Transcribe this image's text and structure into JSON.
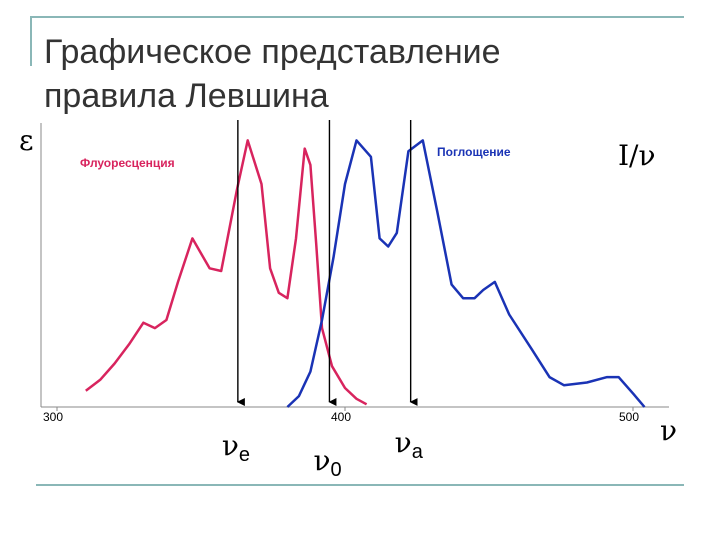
{
  "title_lines": [
    "Графическое представление",
    "правила Левшина"
  ],
  "colors": {
    "fluorescence": "#d8245e",
    "absorption": "#1a33b5",
    "decor": "#8ab7b7"
  },
  "chart_data": {
    "type": "line",
    "title": "Графическое представление правила Левшина",
    "ylabel_left": "ε",
    "ylabel_right": "I/ν",
    "xlabel": "ν",
    "xlim": [
      300,
      500
    ],
    "ylim": [
      0,
      1
    ],
    "x_ticks": [
      {
        "value": 300,
        "label": "300"
      },
      {
        "value": 400,
        "label": "400"
      },
      {
        "value": 500,
        "label": "500"
      }
    ],
    "grid": false,
    "series": [
      {
        "name": "Флуоресценция",
        "color": "#d8245e",
        "points": [
          [
            310.0,
            0.06
          ],
          [
            315.0,
            0.1
          ],
          [
            320.0,
            0.16
          ],
          [
            325.0,
            0.23
          ],
          [
            330.0,
            0.31
          ],
          [
            334.0,
            0.29
          ],
          [
            338.0,
            0.32
          ],
          [
            342.0,
            0.46
          ],
          [
            347.0,
            0.62
          ],
          [
            353.0,
            0.51
          ],
          [
            357.0,
            0.5
          ],
          [
            362.5,
            0.8
          ],
          [
            366.2,
            0.98
          ],
          [
            371.0,
            0.82
          ],
          [
            374.0,
            0.51
          ],
          [
            377.0,
            0.42
          ],
          [
            380.0,
            0.4
          ],
          [
            383.0,
            0.62
          ],
          [
            386.0,
            0.95
          ],
          [
            388.0,
            0.89
          ],
          [
            390.0,
            0.6
          ],
          [
            392.0,
            0.29
          ],
          [
            395.5,
            0.15
          ],
          [
            400.0,
            0.07
          ],
          [
            404.0,
            0.03
          ],
          [
            407.5,
            0.01
          ]
        ]
      },
      {
        "name": "Поглощение",
        "color": "#1a33b5",
        "points": [
          [
            380.0,
            0.0
          ],
          [
            384.0,
            0.04
          ],
          [
            388.0,
            0.13
          ],
          [
            392.0,
            0.32
          ],
          [
            396.0,
            0.55
          ],
          [
            400.0,
            0.82
          ],
          [
            404.0,
            0.98
          ],
          [
            409.0,
            0.92
          ],
          [
            412.0,
            0.62
          ],
          [
            415.0,
            0.59
          ],
          [
            418.0,
            0.64
          ],
          [
            422.0,
            0.94
          ],
          [
            427.0,
            0.98
          ],
          [
            432.0,
            0.72
          ],
          [
            437.0,
            0.45
          ],
          [
            441.0,
            0.4
          ],
          [
            445.0,
            0.4
          ],
          [
            448.0,
            0.43
          ],
          [
            452.0,
            0.46
          ],
          [
            457.0,
            0.34
          ],
          [
            465.0,
            0.21
          ],
          [
            471.0,
            0.11
          ],
          [
            476.0,
            0.08
          ],
          [
            484.0,
            0.09
          ],
          [
            491.0,
            0.11
          ],
          [
            495.0,
            0.11
          ],
          [
            500.0,
            0.05
          ],
          [
            504.0,
            0.0
          ]
        ]
      }
    ],
    "markers": [
      {
        "x": 362.8,
        "label": "ν",
        "sub": "e"
      },
      {
        "x": 394.6,
        "label": "ν",
        "sub": "0"
      },
      {
        "x": 422.8,
        "label": "ν",
        "sub": "a"
      }
    ]
  }
}
